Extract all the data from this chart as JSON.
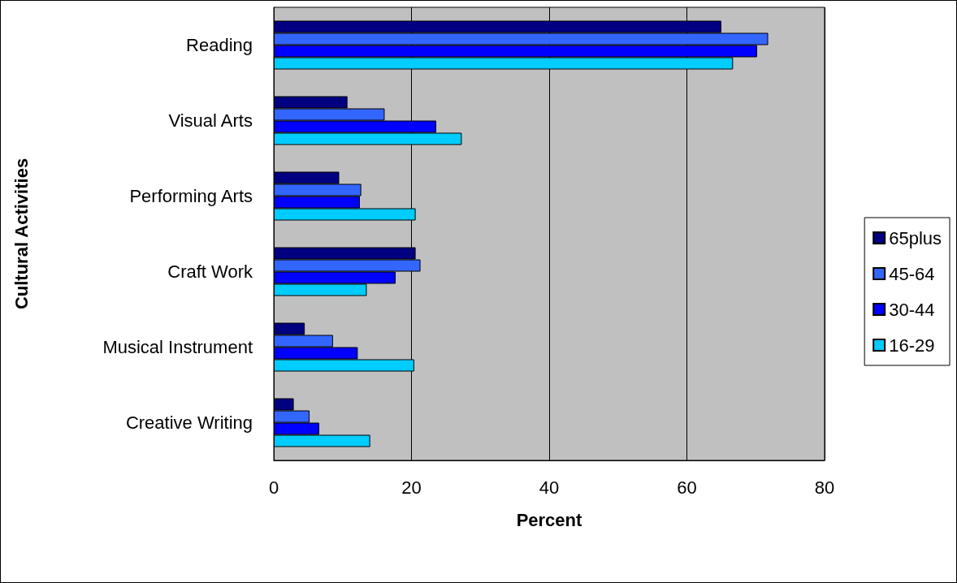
{
  "chart_data": {
    "type": "bar",
    "orientation": "horizontal",
    "xlabel": "Percent",
    "ylabel": "Cultural Activities",
    "categories": [
      "Reading",
      "Visual Arts",
      "Performing Arts",
      "Craft Work",
      "Musical Instrument",
      "Creative Writing"
    ],
    "series": [
      {
        "name": "65plus",
        "color": "#000080",
        "values": [
          65.0,
          10.7,
          9.5,
          20.6,
          4.5,
          2.9
        ]
      },
      {
        "name": "45-64",
        "color": "#3366ff",
        "values": [
          71.8,
          16.1,
          12.7,
          21.3,
          8.6,
          5.2
        ]
      },
      {
        "name": "30-44",
        "color": "#0000ff",
        "values": [
          70.2,
          23.6,
          12.5,
          17.7,
          12.2,
          6.6
        ]
      },
      {
        "name": "16-29",
        "color": "#00ccff",
        "values": [
          66.7,
          27.3,
          20.6,
          13.5,
          20.4,
          14.0
        ]
      }
    ],
    "xlim": [
      0,
      80
    ],
    "xticks": [
      0,
      20,
      40,
      60,
      80
    ],
    "grid": "x",
    "legend": "right"
  }
}
